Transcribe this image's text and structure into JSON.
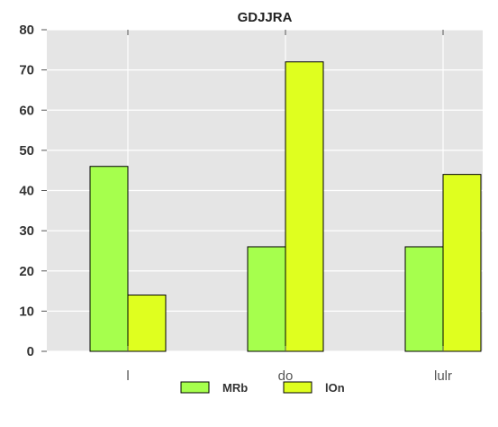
{
  "chart_data": {
    "type": "bar",
    "title": "GDJJRA",
    "xlabel": "",
    "ylabel": "",
    "categories": [
      "l",
      "do",
      "lulr"
    ],
    "series": [
      {
        "name": "MRb",
        "color": "#a6ff4d",
        "values": [
          46,
          26,
          26
        ]
      },
      {
        "name": "lOn",
        "color": "#dfff1f",
        "values": [
          14,
          72,
          44
        ]
      }
    ],
    "ylim": [
      0,
      80
    ],
    "yticks": [
      "0",
      "10",
      "20",
      "30",
      "40",
      "50",
      "60",
      "70",
      "80"
    ],
    "grid": true,
    "legend": "bottom-center",
    "plot_background": "#e5e5e5"
  }
}
